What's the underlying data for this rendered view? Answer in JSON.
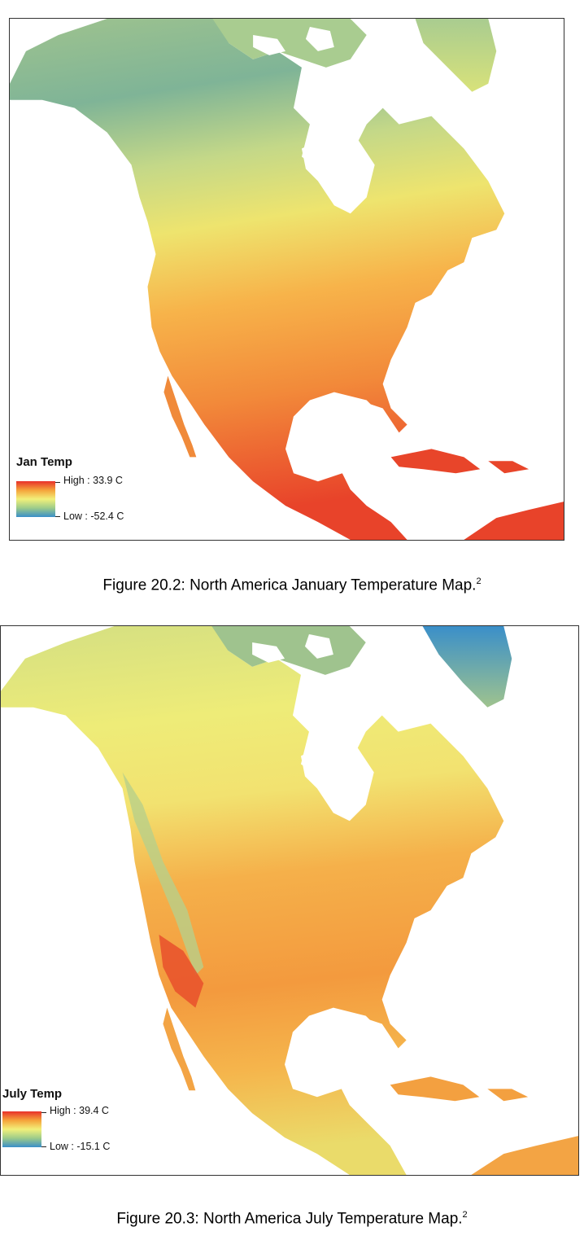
{
  "figures": [
    {
      "legend": {
        "title": "Jan Temp",
        "high": "High : 33.9 C",
        "low": "Low : -52.4 C",
        "colors": [
          "#e8302a",
          "#f5a43a",
          "#f2f07a",
          "#9ccb8a",
          "#3a8fc9"
        ]
      },
      "caption": "Figure 20.2: North America January Temperature Map.",
      "footnote": "2"
    },
    {
      "legend": {
        "title": "July Temp",
        "high": "High : 39.4 C",
        "low": "Low : -15.1 C",
        "colors": [
          "#e8302a",
          "#f5a43a",
          "#f2f07a",
          "#9ccb8a",
          "#3a8fc9"
        ]
      },
      "caption": "Figure 20.3: North America July Temperature Map.",
      "footnote": "2"
    }
  ]
}
